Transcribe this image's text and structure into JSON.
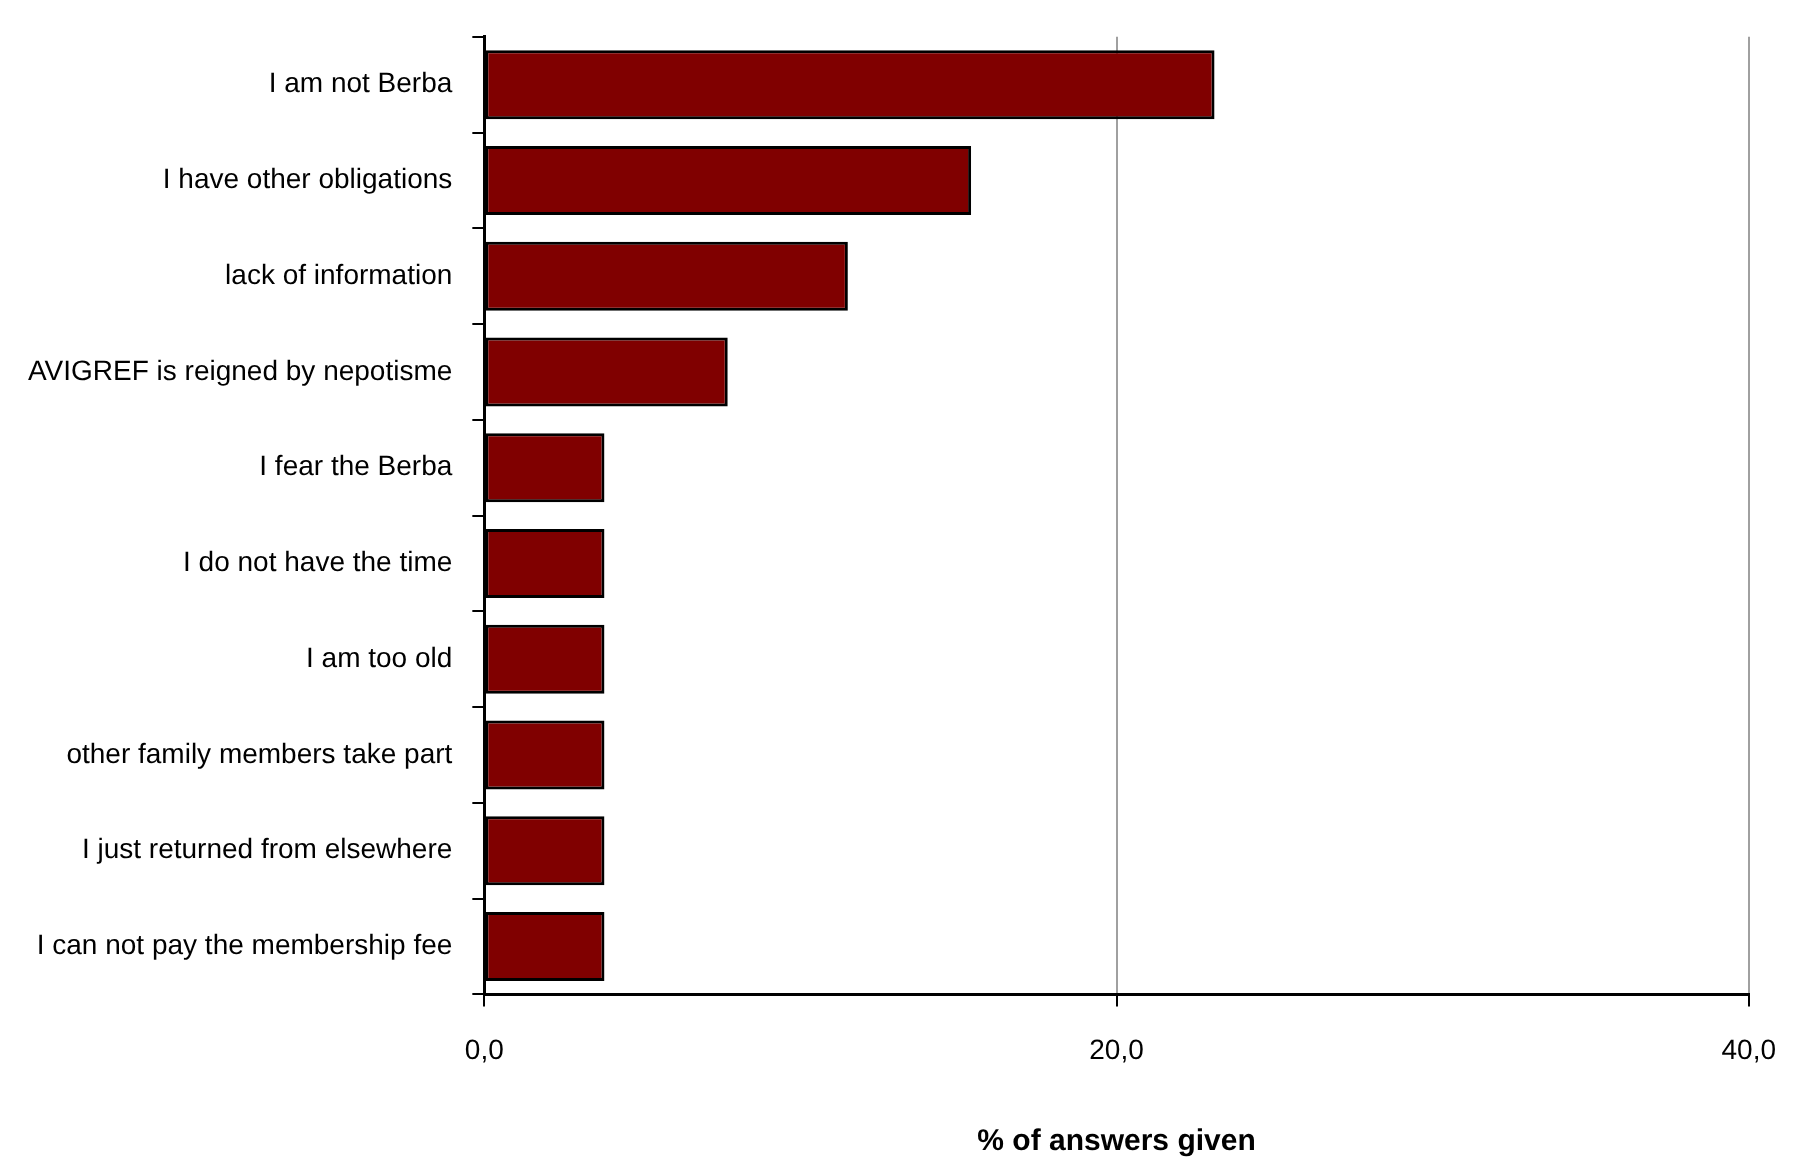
{
  "chart_data": {
    "type": "bar",
    "orientation": "horizontal",
    "xlabel": "% of answers given",
    "categories": [
      "I am not Berba",
      "I have other obligations",
      "lack of information",
      "AVIGREF is reigned by nepotisme",
      "I fear the Berba",
      "I do not have the time",
      "I am too old",
      "other family members take part",
      "I just returned from elsewhere",
      "I can not pay the membership fee"
    ],
    "values": [
      23.1,
      15.4,
      11.5,
      7.7,
      3.8,
      3.8,
      3.8,
      3.8,
      3.8,
      3.8
    ],
    "color": "#800000",
    "xlim": [
      0,
      40
    ],
    "xticks": [
      {
        "value": 0,
        "label": "0,0"
      },
      {
        "value": 20,
        "label": "20,0"
      },
      {
        "value": 40,
        "label": "40,0"
      }
    ],
    "grid": "x",
    "legend": false
  }
}
